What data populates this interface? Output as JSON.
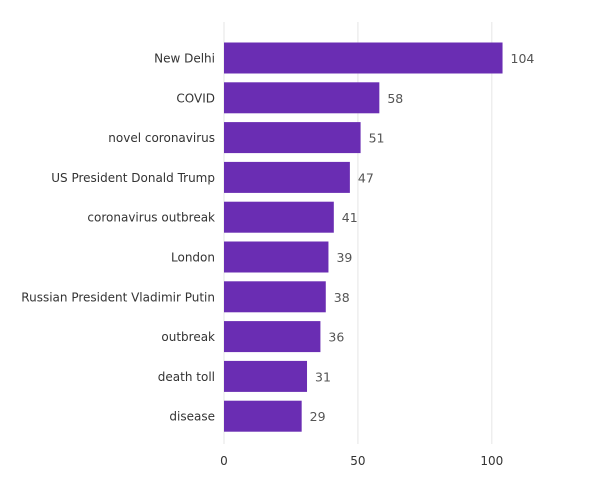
{
  "chart_data": {
    "type": "bar",
    "orientation": "horizontal",
    "categories": [
      "New Delhi",
      "COVID",
      "novel coronavirus",
      "US President Donald Trump",
      "coronavirus outbreak",
      "London",
      "Russian President Vladimir Putin",
      "outbreak",
      "death toll",
      "disease"
    ],
    "values": [
      104,
      58,
      51,
      47,
      41,
      39,
      38,
      36,
      31,
      29
    ],
    "xlim": [
      0,
      115
    ],
    "xticks": [
      0,
      50,
      100
    ],
    "grid": true,
    "bar_color": "#6a2db3",
    "title": "",
    "xlabel": "",
    "ylabel": ""
  }
}
